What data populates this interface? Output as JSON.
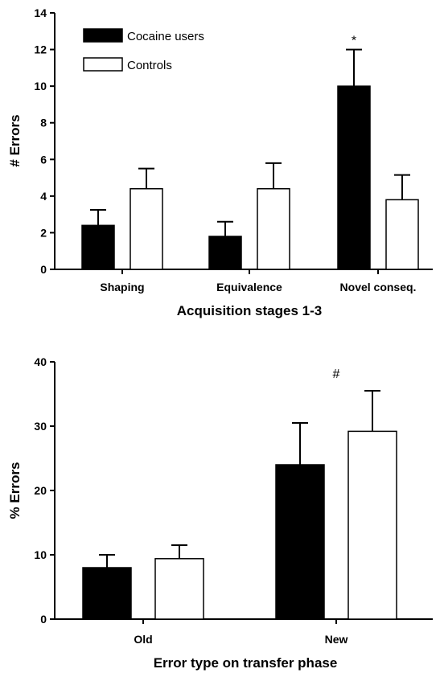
{
  "colors": {
    "cocaine": "#000000",
    "controls": "#ffffff",
    "stroke": "#000000"
  },
  "chart_data": [
    {
      "type": "bar",
      "categories": [
        "Shaping",
        "Equivalence",
        "Novel conseq."
      ],
      "series": [
        {
          "name": "Cocaine users",
          "values": [
            2.4,
            1.8,
            10.0
          ],
          "errors": [
            0.85,
            0.8,
            2.0
          ]
        },
        {
          "name": "Controls",
          "values": [
            4.4,
            4.4,
            3.8
          ],
          "errors": [
            1.1,
            1.4,
            1.35
          ]
        }
      ],
      "xlabel": "Acquisition stages 1-3",
      "ylabel": "# Errors",
      "ylim": [
        0,
        14
      ],
      "yticks": [
        0,
        2,
        4,
        6,
        8,
        10,
        12,
        14
      ],
      "annotations": [
        {
          "text": "*",
          "category": "Novel conseq.",
          "series": "Cocaine users"
        }
      ],
      "legend": "top-left",
      "grid": false
    },
    {
      "type": "bar",
      "categories": [
        "Old",
        "New"
      ],
      "series": [
        {
          "name": "Cocaine users",
          "values": [
            8,
            24
          ],
          "errors": [
            2,
            6.5
          ]
        },
        {
          "name": "Controls",
          "values": [
            9.4,
            29.2
          ],
          "errors": [
            2.1,
            6.3
          ]
        }
      ],
      "xlabel": "Error type on transfer phase",
      "ylabel": "% Errors",
      "ylim": [
        0,
        40
      ],
      "yticks": [
        0,
        10,
        20,
        30,
        40
      ],
      "annotations": [
        {
          "text": "#",
          "category": "New"
        }
      ],
      "grid": false
    }
  ]
}
